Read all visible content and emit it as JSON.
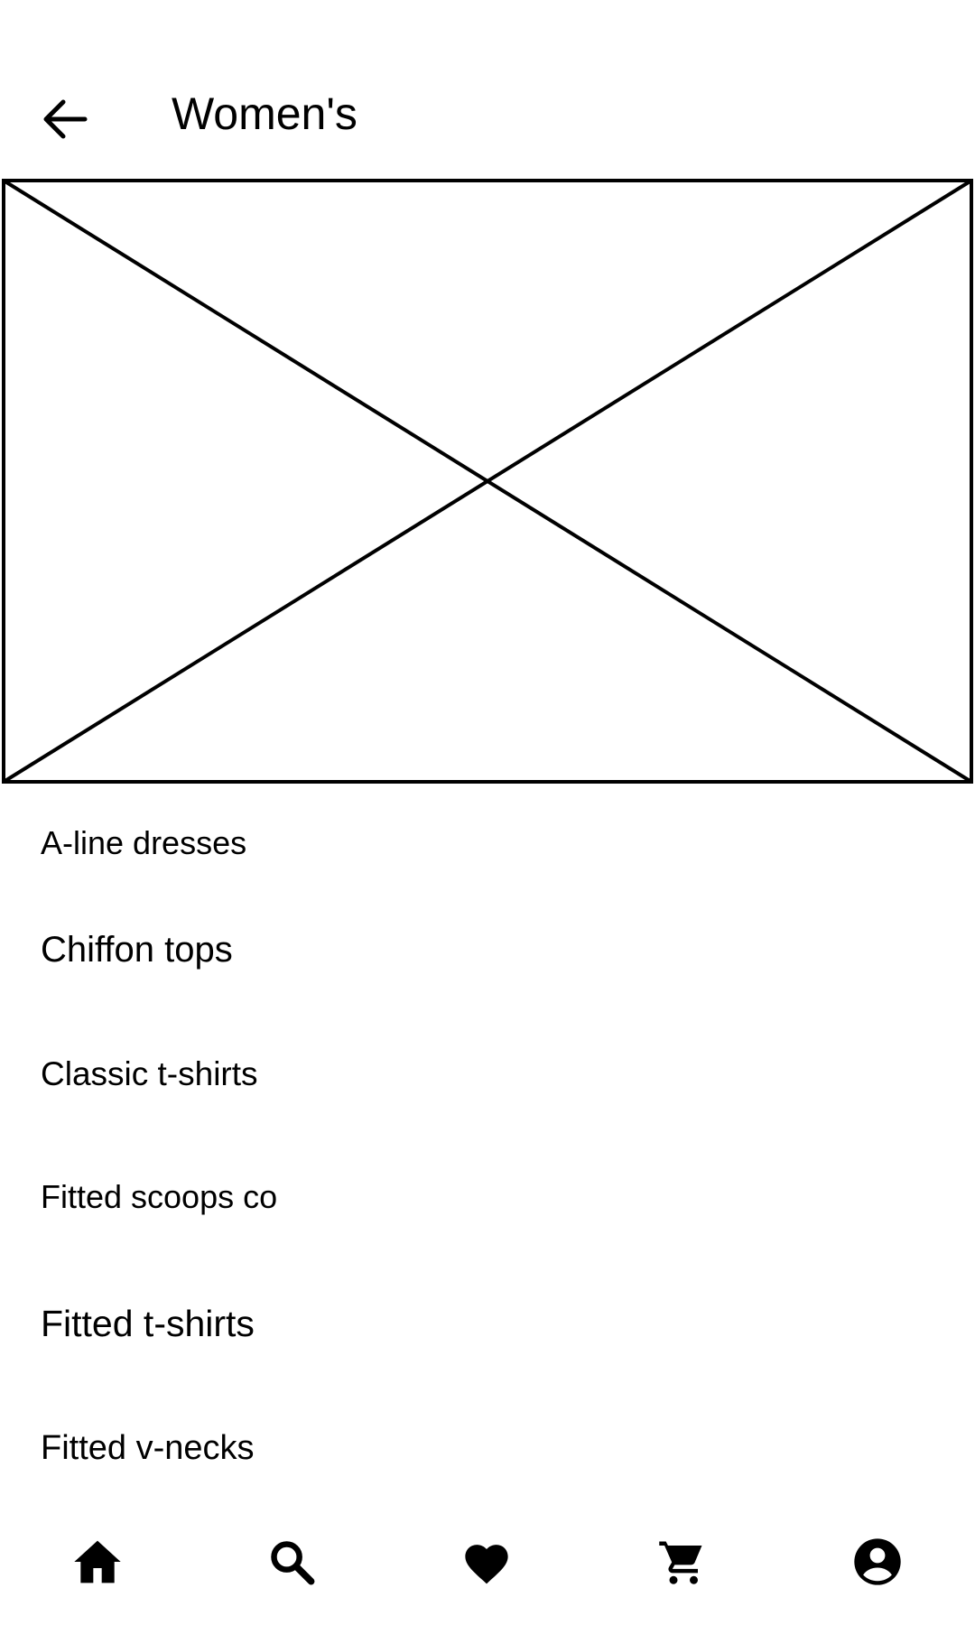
{
  "header": {
    "title": "Women's",
    "back_icon": "arrow-left-icon"
  },
  "hero": {
    "type": "image-placeholder"
  },
  "categories": [
    {
      "label": "A-line dresses"
    },
    {
      "label": "Chiffon tops"
    },
    {
      "label": "Classic t-shirts"
    },
    {
      "label": "Fitted scoops co"
    },
    {
      "label": "Fitted t-shirts"
    },
    {
      "label": "Fitted v-necks"
    }
  ],
  "bottom_nav": {
    "items": [
      {
        "icon": "home-icon"
      },
      {
        "icon": "search-icon"
      },
      {
        "icon": "heart-icon"
      },
      {
        "icon": "cart-icon"
      },
      {
        "icon": "account-icon"
      }
    ]
  },
  "colors": {
    "background": "#ffffff",
    "foreground": "#000000"
  }
}
